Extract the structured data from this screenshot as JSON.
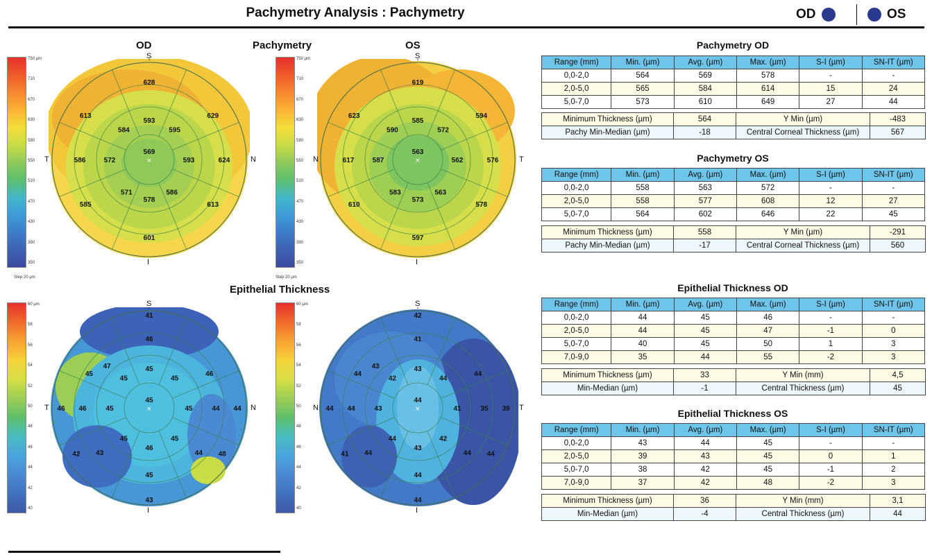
{
  "header": {
    "title": "Pachymetry Analysis : Pachymetry",
    "od_label": "OD",
    "os_label": "OS",
    "dot_color": "#2b3a8f"
  },
  "maps": {
    "od_label": "OD",
    "os_label": "OS",
    "pachy_title": "Pachymetry",
    "epi_title": "Epithelial Thickness",
    "step_label": "Step 20 µm",
    "directions": {
      "s": "S",
      "i": "I",
      "t": "T",
      "n": "N"
    },
    "pachy_scale": [
      "750 µm",
      "710",
      "670",
      "630",
      "590",
      "550",
      "510",
      "470",
      "430",
      "390",
      "350"
    ],
    "epi_scale": [
      "60 µm",
      "58",
      "56",
      "54",
      "52",
      "50",
      "48",
      "46",
      "44",
      "42",
      "40"
    ],
    "pachy_od_values": [
      "628",
      "613",
      "629",
      "593",
      "584",
      "595",
      "569",
      "572",
      "593",
      "586",
      "624",
      "571",
      "578",
      "586",
      "585",
      "613",
      "601"
    ],
    "pachy_os_values": [
      "619",
      "623",
      "594",
      "585",
      "590",
      "572",
      "563",
      "587",
      "562",
      "617",
      "576",
      "583",
      "573",
      "563",
      "610",
      "578",
      "597"
    ],
    "epi_od_values": [
      "41",
      "45",
      "46",
      "47",
      "46",
      "45",
      "45",
      "45",
      "45",
      "45",
      "46",
      "46",
      "45",
      "44",
      "44",
      "45",
      "45",
      "46",
      "43",
      "44",
      "42",
      "45",
      "48",
      "43"
    ],
    "epi_os_values": [
      "42",
      "44",
      "41",
      "43",
      "44",
      "42",
      "43",
      "44",
      "44",
      "43",
      "44",
      "44",
      "41",
      "35",
      "39",
      "44",
      "42",
      "43",
      "44",
      "44",
      "41",
      "44",
      "44",
      "44"
    ]
  },
  "tables": {
    "pachy_od": {
      "title": "Pachymetry OD",
      "headers": [
        "Range (mm)",
        "Min. (µm)",
        "Avg. (µm)",
        "Max. (µm)",
        "S-I (µm)",
        "SN-IT (µm)"
      ],
      "rows": [
        [
          "0,0-2,0",
          "564",
          "569",
          "578",
          "-",
          "-"
        ],
        [
          "2,0-5,0",
          "565",
          "584",
          "614",
          "15",
          "24"
        ],
        [
          "5,0-7,0",
          "573",
          "610",
          "649",
          "27",
          "44"
        ]
      ],
      "summary": [
        [
          "Minimum Thickness (µm)",
          "564",
          "Y Min (µm)",
          "-483"
        ],
        [
          "Pachy Min-Median (µm)",
          "-18",
          "Central Corneal Thickness (µm)",
          "567"
        ]
      ]
    },
    "pachy_os": {
      "title": "Pachymetry OS",
      "headers": [
        "Range (mm)",
        "Min. (µm)",
        "Avg. (µm)",
        "Max. (µm)",
        "S-I (µm)",
        "SN-IT (µm)"
      ],
      "rows": [
        [
          "0,0-2,0",
          "558",
          "563",
          "572",
          "-",
          "-"
        ],
        [
          "2,0-5,0",
          "558",
          "577",
          "608",
          "12",
          "27"
        ],
        [
          "5,0-7,0",
          "564",
          "602",
          "646",
          "22",
          "45"
        ]
      ],
      "summary": [
        [
          "Minimum Thickness (µm)",
          "558",
          "Y Min (µm)",
          "-291"
        ],
        [
          "Pachy Min-Median (µm)",
          "-17",
          "Central Corneal Thickness (µm)",
          "560"
        ]
      ]
    },
    "epi_od": {
      "title": "Epithelial Thickness OD",
      "headers": [
        "Range (mm)",
        "Min. (µm)",
        "Avg. (µm)",
        "Max. (µm)",
        "S-I (µm)",
        "SN-IT (µm)"
      ],
      "rows": [
        [
          "0,0-2,0",
          "44",
          "45",
          "46",
          "-",
          "-"
        ],
        [
          "2,0-5,0",
          "44",
          "45",
          "47",
          "-1",
          "0"
        ],
        [
          "5,0-7,0",
          "40",
          "45",
          "50",
          "1",
          "3"
        ],
        [
          "7,0-9,0",
          "35",
          "44",
          "55",
          "-2",
          "3"
        ]
      ],
      "summary": [
        [
          "Minimum Thickness (µm)",
          "33",
          "Y Min (mm)",
          "4,5"
        ],
        [
          "Min-Median (µm)",
          "-1",
          "Central Thickness (µm)",
          "45"
        ]
      ]
    },
    "epi_os": {
      "title": "Epithelial Thickness OS",
      "headers": [
        "Range (mm)",
        "Min. (µm)",
        "Avg. (µm)",
        "Max. (µm)",
        "S-I (µm)",
        "SN-IT (µm)"
      ],
      "rows": [
        [
          "0,0-2,0",
          "43",
          "44",
          "45",
          "-",
          "-"
        ],
        [
          "2,0-5,0",
          "39",
          "43",
          "45",
          "0",
          "1"
        ],
        [
          "5,0-7,0",
          "38",
          "42",
          "45",
          "-1",
          "2"
        ],
        [
          "7,0-9,0",
          "37",
          "42",
          "48",
          "-2",
          "3"
        ]
      ],
      "summary": [
        [
          "Minimum Thickness (µm)",
          "36",
          "Y Min (mm)",
          "3,1"
        ],
        [
          "Min-Median (µm)",
          "-4",
          "Central Thickness (µm)",
          "44"
        ]
      ]
    }
  }
}
